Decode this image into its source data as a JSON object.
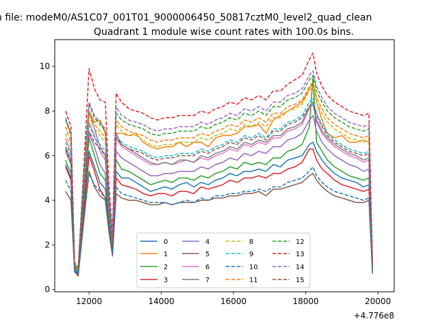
{
  "figure": {
    "suptitle": "n file: modeM0/AS1C07_001T01_9000006450_50817cztM0_level2_quad_clean",
    "title": "Quadrant 1 module wise count rates with 100.0s bins.",
    "x_offset_label": "+4.776e8"
  },
  "chart_data": {
    "type": "line",
    "title": "Quadrant 1 module wise count rates with 100.0s bins.",
    "xlabel": "",
    "ylabel": "",
    "x_offset": 477600000,
    "xlim": [
      11050,
      20450
    ],
    "ylim": [
      -0.1,
      11.2
    ],
    "xticks": [
      12000,
      14000,
      16000,
      18000,
      20000
    ],
    "xtick_labels": [
      "12000",
      "14000",
      "16000",
      "18000",
      "20000"
    ],
    "yticks": [
      0,
      2,
      4,
      6,
      8,
      10
    ],
    "ytick_labels": [
      "0",
      "2",
      "4",
      "6",
      "8",
      "10"
    ],
    "grid": false,
    "legend": {
      "placement": "lower-center",
      "ncol": 4
    },
    "x": [
      11350,
      11500,
      11600,
      11700,
      11850,
      12000,
      12150,
      12300,
      12450,
      12550,
      12650,
      12750,
      12900,
      13100,
      13300,
      13500,
      13700,
      13900,
      14100,
      14300,
      14500,
      14700,
      14900,
      15100,
      15300,
      15500,
      15700,
      15900,
      16100,
      16300,
      16500,
      16700,
      16900,
      17100,
      17300,
      17500,
      17700,
      17900,
      18100,
      18200,
      18300,
      18450,
      18600,
      18800,
      19000,
      19200,
      19400,
      19600,
      19750,
      19850
    ],
    "series": [
      {
        "name": "0",
        "color": "#1f77b4",
        "dash": "solid",
        "values": [
          5.6,
          5.0,
          0.9,
          0.7,
          3.5,
          6.2,
          5.5,
          4.8,
          4.5,
          3.0,
          1.6,
          5.3,
          5.0,
          5.0,
          4.8,
          4.6,
          4.4,
          4.5,
          4.6,
          4.5,
          4.7,
          4.8,
          4.6,
          4.8,
          4.7,
          4.9,
          5.0,
          5.2,
          5.1,
          5.3,
          5.3,
          5.4,
          5.3,
          5.6,
          5.5,
          5.8,
          5.9,
          6.0,
          6.5,
          6.6,
          6.2,
          5.8,
          5.5,
          5.2,
          5.0,
          4.9,
          4.8,
          4.6,
          4.7,
          0.8
        ]
      },
      {
        "name": "1",
        "color": "#ff7f0e",
        "dash": "solid",
        "values": [
          7.6,
          7.0,
          1.0,
          0.9,
          5.0,
          8.0,
          7.5,
          7.6,
          7.0,
          4.0,
          2.2,
          7.0,
          7.0,
          6.9,
          7.0,
          6.6,
          6.4,
          6.3,
          6.4,
          6.4,
          6.6,
          6.4,
          6.6,
          6.6,
          6.4,
          6.8,
          6.9,
          6.9,
          7.0,
          7.3,
          7.3,
          7.4,
          7.0,
          7.6,
          7.8,
          8.0,
          8.2,
          8.4,
          9.0,
          9.3,
          8.4,
          7.6,
          7.0,
          6.8,
          6.9,
          6.6,
          6.6,
          6.7,
          6.6,
          1.0
        ]
      },
      {
        "name": "2",
        "color": "#2ca02c",
        "dash": "solid",
        "values": [
          5.8,
          5.2,
          0.9,
          0.8,
          3.9,
          6.8,
          6.0,
          5.2,
          4.9,
          3.2,
          1.7,
          5.8,
          5.4,
          5.3,
          5.1,
          4.9,
          4.7,
          4.8,
          4.9,
          4.8,
          5.0,
          5.0,
          4.9,
          5.1,
          5.0,
          5.2,
          5.3,
          5.5,
          5.4,
          5.7,
          5.6,
          5.7,
          5.6,
          5.9,
          5.9,
          6.2,
          6.3,
          6.5,
          7.3,
          9.5,
          6.6,
          6.2,
          5.8,
          5.5,
          5.3,
          5.1,
          5.0,
          4.9,
          5.0,
          0.9
        ]
      },
      {
        "name": "3",
        "color": "#d62728",
        "dash": "solid",
        "values": [
          5.5,
          4.9,
          0.8,
          0.7,
          3.3,
          6.0,
          5.3,
          4.5,
          4.1,
          2.8,
          1.6,
          5.0,
          4.7,
          4.6,
          4.5,
          4.3,
          4.2,
          4.3,
          4.3,
          4.2,
          4.4,
          4.4,
          4.3,
          4.6,
          4.5,
          4.6,
          4.7,
          4.9,
          4.8,
          5.0,
          5.0,
          5.1,
          5.0,
          5.2,
          5.2,
          5.4,
          5.5,
          5.7,
          6.3,
          6.3,
          5.8,
          5.4,
          5.2,
          4.9,
          4.7,
          4.6,
          4.5,
          4.4,
          4.5,
          0.8
        ]
      },
      {
        "name": "4",
        "color": "#9467bd",
        "dash": "solid",
        "values": [
          6.2,
          5.6,
          1.0,
          0.8,
          4.3,
          7.0,
          6.4,
          5.6,
          5.2,
          3.5,
          1.9,
          6.2,
          5.9,
          5.7,
          5.5,
          5.3,
          5.1,
          5.1,
          5.2,
          5.2,
          5.3,
          5.3,
          5.3,
          5.5,
          5.4,
          5.6,
          5.7,
          5.9,
          5.8,
          6.1,
          6.0,
          6.2,
          6.1,
          6.4,
          6.4,
          6.7,
          6.8,
          7.0,
          7.6,
          7.8,
          7.1,
          6.6,
          6.3,
          6.0,
          5.8,
          5.6,
          5.5,
          5.3,
          5.4,
          1.0
        ]
      },
      {
        "name": "5",
        "color": "#8c564b",
        "dash": "solid",
        "values": [
          4.4,
          4.0,
          0.8,
          0.6,
          3.0,
          5.3,
          4.6,
          4.2,
          4.0,
          2.6,
          1.5,
          4.3,
          4.1,
          4.0,
          4.0,
          3.9,
          3.8,
          3.8,
          3.9,
          3.8,
          3.9,
          3.9,
          3.9,
          4.0,
          4.0,
          4.1,
          4.1,
          4.2,
          4.2,
          4.3,
          4.3,
          4.4,
          4.2,
          4.5,
          4.5,
          4.6,
          4.7,
          4.8,
          5.1,
          5.2,
          4.9,
          4.6,
          4.4,
          4.2,
          4.1,
          4.0,
          3.9,
          3.9,
          4.0,
          0.7
        ]
      },
      {
        "name": "6",
        "color": "#e377c2",
        "dash": "solid",
        "values": [
          6.8,
          6.1,
          1.0,
          0.9,
          4.5,
          7.5,
          6.9,
          6.2,
          5.8,
          3.8,
          2.0,
          6.8,
          6.4,
          6.2,
          6.0,
          5.8,
          5.6,
          5.6,
          5.7,
          5.6,
          5.7,
          5.8,
          5.7,
          5.9,
          5.8,
          6.0,
          6.1,
          6.3,
          6.2,
          6.5,
          6.4,
          6.6,
          6.5,
          6.8,
          6.8,
          7.1,
          7.2,
          7.4,
          8.1,
          8.3,
          7.5,
          7.0,
          6.7,
          6.4,
          6.2,
          6.0,
          5.9,
          5.7,
          5.8,
          1.0
        ]
      },
      {
        "name": "7",
        "color": "#7f7f7f",
        "dash": "solid",
        "values": [
          6.4,
          5.8,
          1.0,
          0.8,
          4.4,
          8.0,
          7.2,
          6.4,
          6.0,
          3.9,
          2.1,
          7.0,
          6.5,
          6.3,
          6.1,
          5.9,
          5.7,
          5.6,
          5.7,
          5.6,
          5.8,
          5.8,
          5.7,
          6.0,
          5.9,
          6.1,
          6.2,
          6.4,
          6.3,
          6.6,
          6.5,
          6.7,
          6.6,
          6.9,
          6.9,
          7.2,
          7.3,
          7.5,
          8.2,
          8.3,
          7.6,
          7.1,
          6.8,
          6.5,
          6.3,
          6.1,
          6.0,
          5.8,
          5.9,
          1.0
        ]
      },
      {
        "name": "8",
        "color": "#bcbd22",
        "dash": "dashed",
        "values": [
          7.0,
          6.4,
          1.1,
          0.9,
          4.7,
          7.8,
          7.2,
          6.9,
          6.6,
          4.0,
          2.2,
          7.4,
          7.1,
          6.9,
          6.9,
          6.7,
          6.5,
          6.4,
          6.5,
          6.5,
          6.6,
          6.6,
          6.6,
          6.8,
          6.7,
          6.9,
          7.0,
          7.2,
          7.1,
          7.4,
          7.3,
          7.5,
          7.3,
          7.7,
          7.7,
          8.0,
          8.1,
          8.3,
          8.9,
          9.1,
          8.4,
          7.9,
          7.5,
          7.2,
          7.0,
          6.8,
          6.7,
          6.6,
          6.7,
          1.1
        ]
      },
      {
        "name": "9",
        "color": "#17becf",
        "dash": "dashed",
        "values": [
          6.6,
          6.0,
          1.0,
          0.9,
          4.5,
          7.4,
          6.8,
          6.5,
          6.2,
          3.8,
          2.1,
          6.9,
          6.6,
          6.4,
          6.3,
          6.2,
          6.0,
          5.9,
          6.0,
          6.0,
          6.1,
          6.1,
          6.1,
          6.3,
          6.2,
          6.4,
          6.5,
          6.7,
          6.6,
          6.9,
          6.8,
          7.0,
          6.8,
          7.2,
          7.2,
          7.5,
          7.6,
          7.8,
          8.4,
          8.6,
          7.9,
          7.4,
          7.0,
          6.7,
          6.5,
          6.3,
          6.2,
          6.1,
          6.2,
          1.0
        ]
      },
      {
        "name": "10",
        "color": "#1f77b4",
        "dash": "dashed",
        "values": [
          4.9,
          4.4,
          0.8,
          0.7,
          3.1,
          5.2,
          4.7,
          4.4,
          4.1,
          2.7,
          1.6,
          4.6,
          4.3,
          4.2,
          4.1,
          4.0,
          3.9,
          3.9,
          3.9,
          3.8,
          3.9,
          4.0,
          3.9,
          4.1,
          4.0,
          4.2,
          4.2,
          4.3,
          4.3,
          4.4,
          4.4,
          4.5,
          4.4,
          4.6,
          4.6,
          4.8,
          4.9,
          5.0,
          5.3,
          5.5,
          5.1,
          4.8,
          4.6,
          4.4,
          4.3,
          4.2,
          4.1,
          4.0,
          4.1,
          0.8
        ]
      },
      {
        "name": "11",
        "color": "#ff7f0e",
        "dash": "dashed",
        "values": [
          7.3,
          6.6,
          1.1,
          0.9,
          4.8,
          8.0,
          7.4,
          7.1,
          6.8,
          4.1,
          2.3,
          7.6,
          7.3,
          7.1,
          7.0,
          6.9,
          6.7,
          6.6,
          6.7,
          6.7,
          6.8,
          6.8,
          6.8,
          7.0,
          6.9,
          7.1,
          7.2,
          7.4,
          7.3,
          7.6,
          7.5,
          7.7,
          7.5,
          7.9,
          7.9,
          8.2,
          8.3,
          8.5,
          9.1,
          9.3,
          8.6,
          8.1,
          7.7,
          7.4,
          7.2,
          7.0,
          6.9,
          6.8,
          6.9,
          1.1
        ]
      },
      {
        "name": "12",
        "color": "#2ca02c",
        "dash": "dashed",
        "values": [
          7.6,
          6.9,
          1.1,
          1.0,
          5.0,
          8.3,
          7.7,
          7.4,
          7.1,
          4.3,
          2.4,
          7.9,
          7.6,
          7.4,
          7.3,
          7.2,
          7.0,
          6.9,
          7.0,
          7.0,
          7.1,
          7.1,
          7.1,
          7.3,
          7.2,
          7.4,
          7.5,
          7.7,
          7.6,
          7.9,
          7.8,
          8.0,
          7.8,
          8.2,
          8.2,
          8.5,
          8.6,
          8.8,
          9.4,
          9.6,
          8.9,
          8.4,
          8.0,
          7.7,
          7.5,
          7.3,
          7.2,
          7.1,
          7.2,
          1.1
        ]
      },
      {
        "name": "13",
        "color": "#d62728",
        "dash": "dashed",
        "values": [
          8.0,
          7.3,
          1.2,
          1.0,
          5.4,
          9.9,
          9.0,
          8.5,
          8.4,
          4.7,
          2.5,
          8.8,
          8.4,
          8.1,
          8.0,
          7.9,
          7.7,
          7.6,
          7.7,
          7.7,
          7.8,
          7.8,
          7.8,
          8.0,
          7.9,
          8.1,
          8.2,
          8.4,
          8.3,
          8.6,
          8.5,
          8.7,
          8.5,
          8.9,
          8.9,
          9.2,
          9.4,
          9.6,
          10.3,
          10.6,
          9.7,
          9.1,
          8.7,
          8.4,
          8.2,
          8.0,
          7.9,
          7.8,
          7.9,
          1.2
        ]
      },
      {
        "name": "14",
        "color": "#9467bd",
        "dash": "dashed",
        "values": [
          7.7,
          7.0,
          1.1,
          1.0,
          5.1,
          8.4,
          7.8,
          7.5,
          7.2,
          4.3,
          2.4,
          8.2,
          7.8,
          7.6,
          7.5,
          7.4,
          7.2,
          7.1,
          7.2,
          7.2,
          7.3,
          7.3,
          7.3,
          7.5,
          7.4,
          7.6,
          7.7,
          7.9,
          7.8,
          8.1,
          8.0,
          8.2,
          8.0,
          8.4,
          8.4,
          8.7,
          8.8,
          9.0,
          9.6,
          9.8,
          9.1,
          8.6,
          8.2,
          7.9,
          7.7,
          7.5,
          7.4,
          7.3,
          7.4,
          1.1
        ]
      },
      {
        "name": "15",
        "color": "#8c564b",
        "dash": "dashed",
        "values": [
          6.3,
          5.7,
          1.0,
          0.9,
          4.3,
          7.1,
          6.6,
          6.3,
          6.0,
          3.7,
          2.0,
          6.8,
          6.5,
          6.3,
          6.2,
          6.1,
          5.9,
          5.8,
          5.9,
          5.9,
          6.0,
          6.0,
          6.0,
          6.2,
          6.1,
          6.3,
          6.4,
          6.6,
          6.5,
          6.8,
          6.7,
          6.9,
          6.7,
          7.1,
          7.1,
          7.4,
          7.5,
          7.7,
          8.2,
          8.4,
          7.8,
          7.3,
          6.9,
          6.6,
          6.4,
          6.2,
          6.1,
          6.0,
          6.1,
          1.0
        ]
      }
    ]
  }
}
